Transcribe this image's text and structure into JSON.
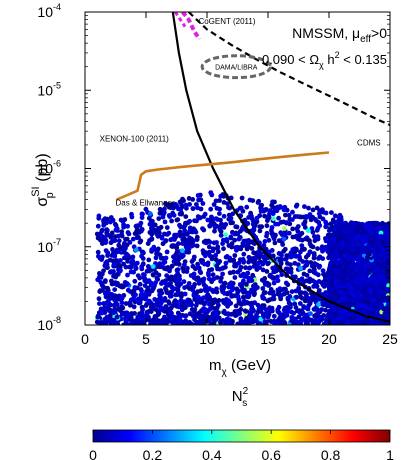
{
  "chart_data": {
    "type": "scatter",
    "title": "NMSSM, μ_eff>0",
    "relic_label": "0.090 < Ω_χ h² < 0.135",
    "xlabel": "m_χ (GeV)",
    "ylabel": "σ_p^SI (pb)",
    "colorbar_label": "N_s²",
    "xlim": [
      0,
      25
    ],
    "ylim": [
      1e-08,
      0.0001
    ],
    "yscale": "log",
    "x_ticks": [
      "0",
      "5",
      "10",
      "15",
      "20",
      "25"
    ],
    "y_ticks": [
      {
        "base": "10",
        "exp": "-8",
        "value": 1e-08
      },
      {
        "base": "10",
        "exp": "-7",
        "value": 1e-07
      },
      {
        "base": "10",
        "exp": "-6",
        "value": 1e-06
      },
      {
        "base": "10",
        "exp": "-5",
        "value": 1e-05
      },
      {
        "base": "10",
        "exp": "-4",
        "value": 0.0001
      }
    ],
    "colorbar": {
      "min": 0,
      "max": 1,
      "ticks": [
        "0",
        "0.2",
        "0.4",
        "0.6",
        "0.8",
        "1"
      ],
      "colormap": "jet"
    },
    "curves": [
      {
        "name": "XENON-100 (2011)",
        "label_x": 1.2,
        "label_y": 2.2e-06,
        "color": "#000000",
        "dash": "solid",
        "points": [
          [
            7.2,
            0.0001
          ],
          [
            7.7,
            3e-05
          ],
          [
            8.3,
            1e-05
          ],
          [
            9.2,
            3e-06
          ],
          [
            10.5,
            1e-06
          ],
          [
            12.2,
            3e-07
          ],
          [
            14.3,
            1e-07
          ],
          [
            16.8,
            4e-08
          ],
          [
            20,
            2e-08
          ],
          [
            23,
            1.3e-08
          ],
          [
            25,
            1.1e-08
          ]
        ]
      },
      {
        "name": "CDMS",
        "label_x": 22.3,
        "label_y": 2.1e-06,
        "color": "#000000",
        "dash": "dashed",
        "points": [
          [
            8.5,
            0.0001
          ],
          [
            10,
            6e-05
          ],
          [
            12,
            3.8e-05
          ],
          [
            14,
            2.5e-05
          ],
          [
            16,
            1.7e-05
          ],
          [
            18,
            1.2e-05
          ],
          [
            20,
            8.5e-06
          ],
          [
            22,
            6e-06
          ],
          [
            24,
            4.2e-06
          ],
          [
            25,
            3.6e-06
          ]
        ]
      },
      {
        "name": "Das & Ellwanger",
        "label_x": 2.5,
        "label_y": 2.5e-06,
        "color": "#cc7a1a",
        "dash": "solid",
        "points": [
          [
            2.6,
            4e-07
          ],
          [
            3.5,
            4.6e-07
          ],
          [
            4.3,
            5.2e-07
          ],
          [
            4.6,
            8.3e-07
          ],
          [
            5,
            9.2e-07
          ],
          [
            6,
            9.7e-07
          ],
          [
            8,
            1.05e-06
          ],
          [
            10,
            1.12e-06
          ],
          [
            12,
            1.2e-06
          ],
          [
            14,
            1.3e-06
          ],
          [
            16,
            1.4e-06
          ],
          [
            18,
            1.5e-06
          ],
          [
            20,
            1.6e-06
          ]
        ]
      }
    ],
    "regions": [
      {
        "name": "CoGENT (2011)",
        "label_x": 9.3,
        "label_y": 7.5e-05,
        "color": "#e020e0",
        "center_x": 8.8,
        "center_y": 6e-05
      },
      {
        "name": "DAMA/LIBRA",
        "label_x": 10.4,
        "label_y": 2e-05,
        "color": "#666666",
        "center_x": 12.4,
        "center_y": 2e-05,
        "rx": 2.8,
        "ry_decades": 0.14
      }
    ],
    "scatter_summary": {
      "x_range": [
        1,
        25
      ],
      "y_range": [
        1e-08,
        2e-07
      ],
      "upper_edge": [
        [
          3,
          2.5e-07
        ],
        [
          10,
          5e-07
        ],
        [
          20,
          3e-07
        ],
        [
          25,
          1.2e-07
        ]
      ],
      "dense_block": {
        "x": [
          20,
          25
        ],
        "y": [
          1e-08,
          2e-07
        ]
      },
      "dominant_value": 0.02
    }
  }
}
